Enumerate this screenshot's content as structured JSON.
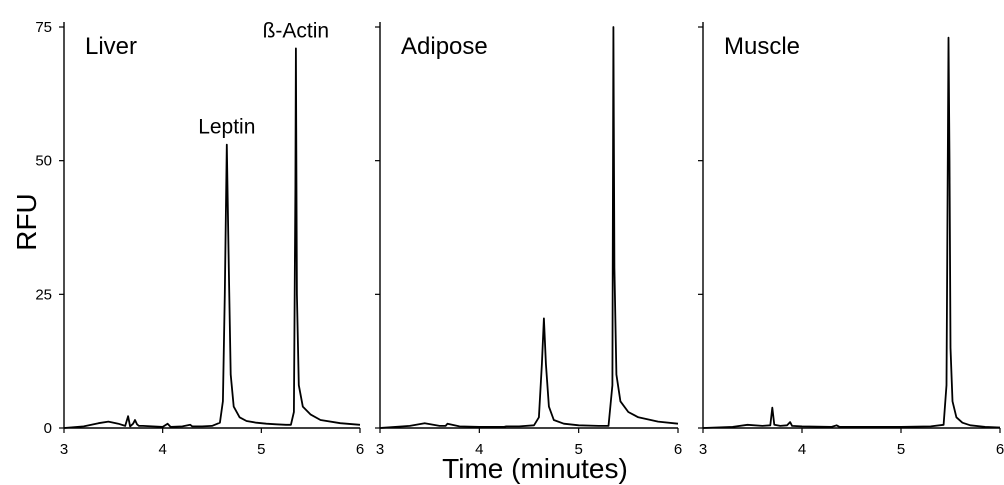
{
  "chart_data": {
    "type": "line",
    "ylabel": "RFU",
    "xlabel": "Time (minutes)",
    "ylim": [
      0,
      75
    ],
    "yticks": [
      "0",
      "25",
      "50",
      "75"
    ],
    "xlim": [
      3,
      6
    ],
    "xticks": [
      "3",
      "4",
      "5",
      "6"
    ],
    "grid": false,
    "legend": "none",
    "line_color": "#000000",
    "panels": [
      {
        "title": "Liver",
        "annotations": [
          {
            "text": "Leptin",
            "x": 4.65,
            "y": 53
          },
          {
            "text": "ß-Actin",
            "x": 5.35,
            "y": 71
          }
        ],
        "series": [
          {
            "x": [
              3.0,
              3.2,
              3.35,
              3.45,
              3.55,
              3.62,
              3.65,
              3.67,
              3.7,
              3.72,
              3.74,
              3.76,
              3.8,
              3.9,
              4.0,
              4.05,
              4.08,
              4.2,
              4.28,
              4.3,
              4.4,
              4.5,
              4.58,
              4.61,
              4.63,
              4.65,
              4.67,
              4.69,
              4.72,
              4.78,
              4.85,
              4.95,
              5.05,
              5.15,
              5.25,
              5.3,
              5.33,
              5.345,
              5.35,
              5.36,
              5.38,
              5.42,
              5.5,
              5.6,
              5.8,
              6.0
            ],
            "y": [
              0,
              0.3,
              0.9,
              1.2,
              0.8,
              0.4,
              2.2,
              0.3,
              0.8,
              1.5,
              0.7,
              0.4,
              0.4,
              0.3,
              0.2,
              0.8,
              0.2,
              0.3,
              0.6,
              0.3,
              0.3,
              0.4,
              1,
              5,
              25,
              53,
              30,
              10,
              4,
              2,
              1.3,
              1,
              0.8,
              0.7,
              0.6,
              0.6,
              3,
              45,
              71,
              25,
              8,
              4,
              2.5,
              1.5,
              0.9,
              0.6
            ]
          }
        ]
      },
      {
        "title": "Adipose",
        "annotations": [],
        "series": [
          {
            "x": [
              3.0,
              3.3,
              3.45,
              3.6,
              3.66,
              3.68,
              3.8,
              4.0,
              4.25,
              4.27,
              4.4,
              4.55,
              4.6,
              4.63,
              4.65,
              4.67,
              4.7,
              4.75,
              4.85,
              5.0,
              5.2,
              5.3,
              5.34,
              5.35,
              5.36,
              5.38,
              5.42,
              5.5,
              5.6,
              5.8,
              6.0
            ],
            "y": [
              0,
              0.4,
              0.9,
              0.4,
              0.4,
              0.8,
              0.3,
              0.2,
              0.2,
              0.3,
              0.3,
              0.5,
              2,
              12,
              20.5,
              12,
              4,
              1.5,
              0.8,
              0.5,
              0.4,
              0.4,
              8,
              75,
              30,
              10,
              5,
              3,
              2,
              1.2,
              0.8
            ]
          }
        ]
      },
      {
        "title": "Muscle",
        "annotations": [],
        "series": [
          {
            "x": [
              3.0,
              3.3,
              3.45,
              3.6,
              3.68,
              3.7,
              3.72,
              3.78,
              3.85,
              3.88,
              3.9,
              4.0,
              4.3,
              4.35,
              4.38,
              4.6,
              5.0,
              5.3,
              5.43,
              5.46,
              5.48,
              5.49,
              5.5,
              5.52,
              5.56,
              5.62,
              5.7,
              5.85,
              6.0
            ],
            "y": [
              0,
              0.2,
              0.6,
              0.4,
              0.5,
              3.8,
              0.6,
              0.4,
              0.5,
              1.1,
              0.4,
              0.3,
              0.2,
              0.5,
              0.2,
              0.2,
              0.2,
              0.3,
              0.6,
              8,
              73,
              50,
              15,
              5,
              2,
              1,
              0.5,
              0.2,
              0.1
            ]
          }
        ]
      }
    ]
  }
}
